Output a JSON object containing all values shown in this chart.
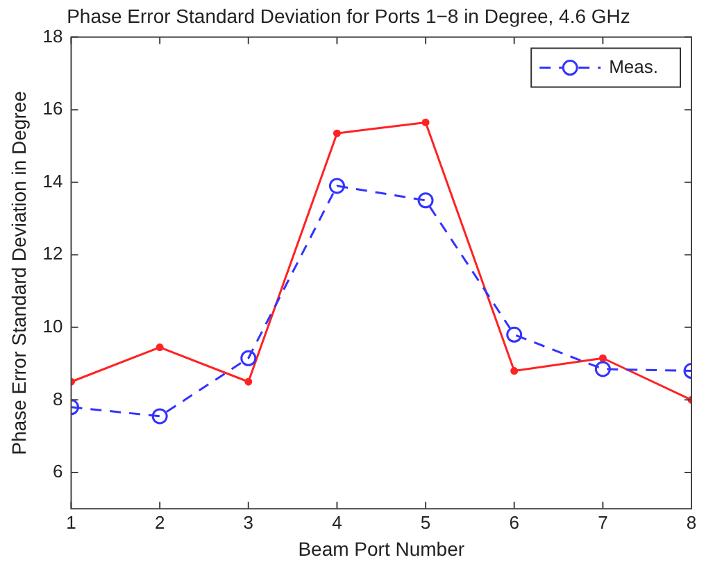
{
  "chart_data": {
    "type": "line",
    "title": "Phase Error Standard Deviation for Ports 1−8 in Degree, 4.6 GHz",
    "xlabel": "Beam Port Number",
    "ylabel": "Phase Error Standard Deviation in Degree",
    "x": [
      1,
      2,
      3,
      4,
      5,
      6,
      7,
      8
    ],
    "series": [
      {
        "name": "Meas.",
        "color": "#3333ff",
        "values": [
          7.8,
          7.55,
          9.15,
          13.9,
          13.5,
          9.8,
          8.85,
          8.8
        ],
        "marker": "circle",
        "line_style": "dashed"
      },
      {
        "color": "#ff2222",
        "values": [
          8.5,
          9.45,
          8.5,
          15.35,
          15.65,
          8.8,
          9.15,
          8.0
        ],
        "marker": "circle",
        "line_style": "solid"
      }
    ],
    "xlim": [
      1,
      8
    ],
    "xticks": [
      1,
      2,
      3,
      4,
      5,
      6,
      7,
      8
    ],
    "ylim": [
      5,
      18
    ],
    "yticks": [
      6,
      8,
      10,
      12,
      14,
      16,
      18
    ],
    "grid": false,
    "legend": "top right"
  }
}
